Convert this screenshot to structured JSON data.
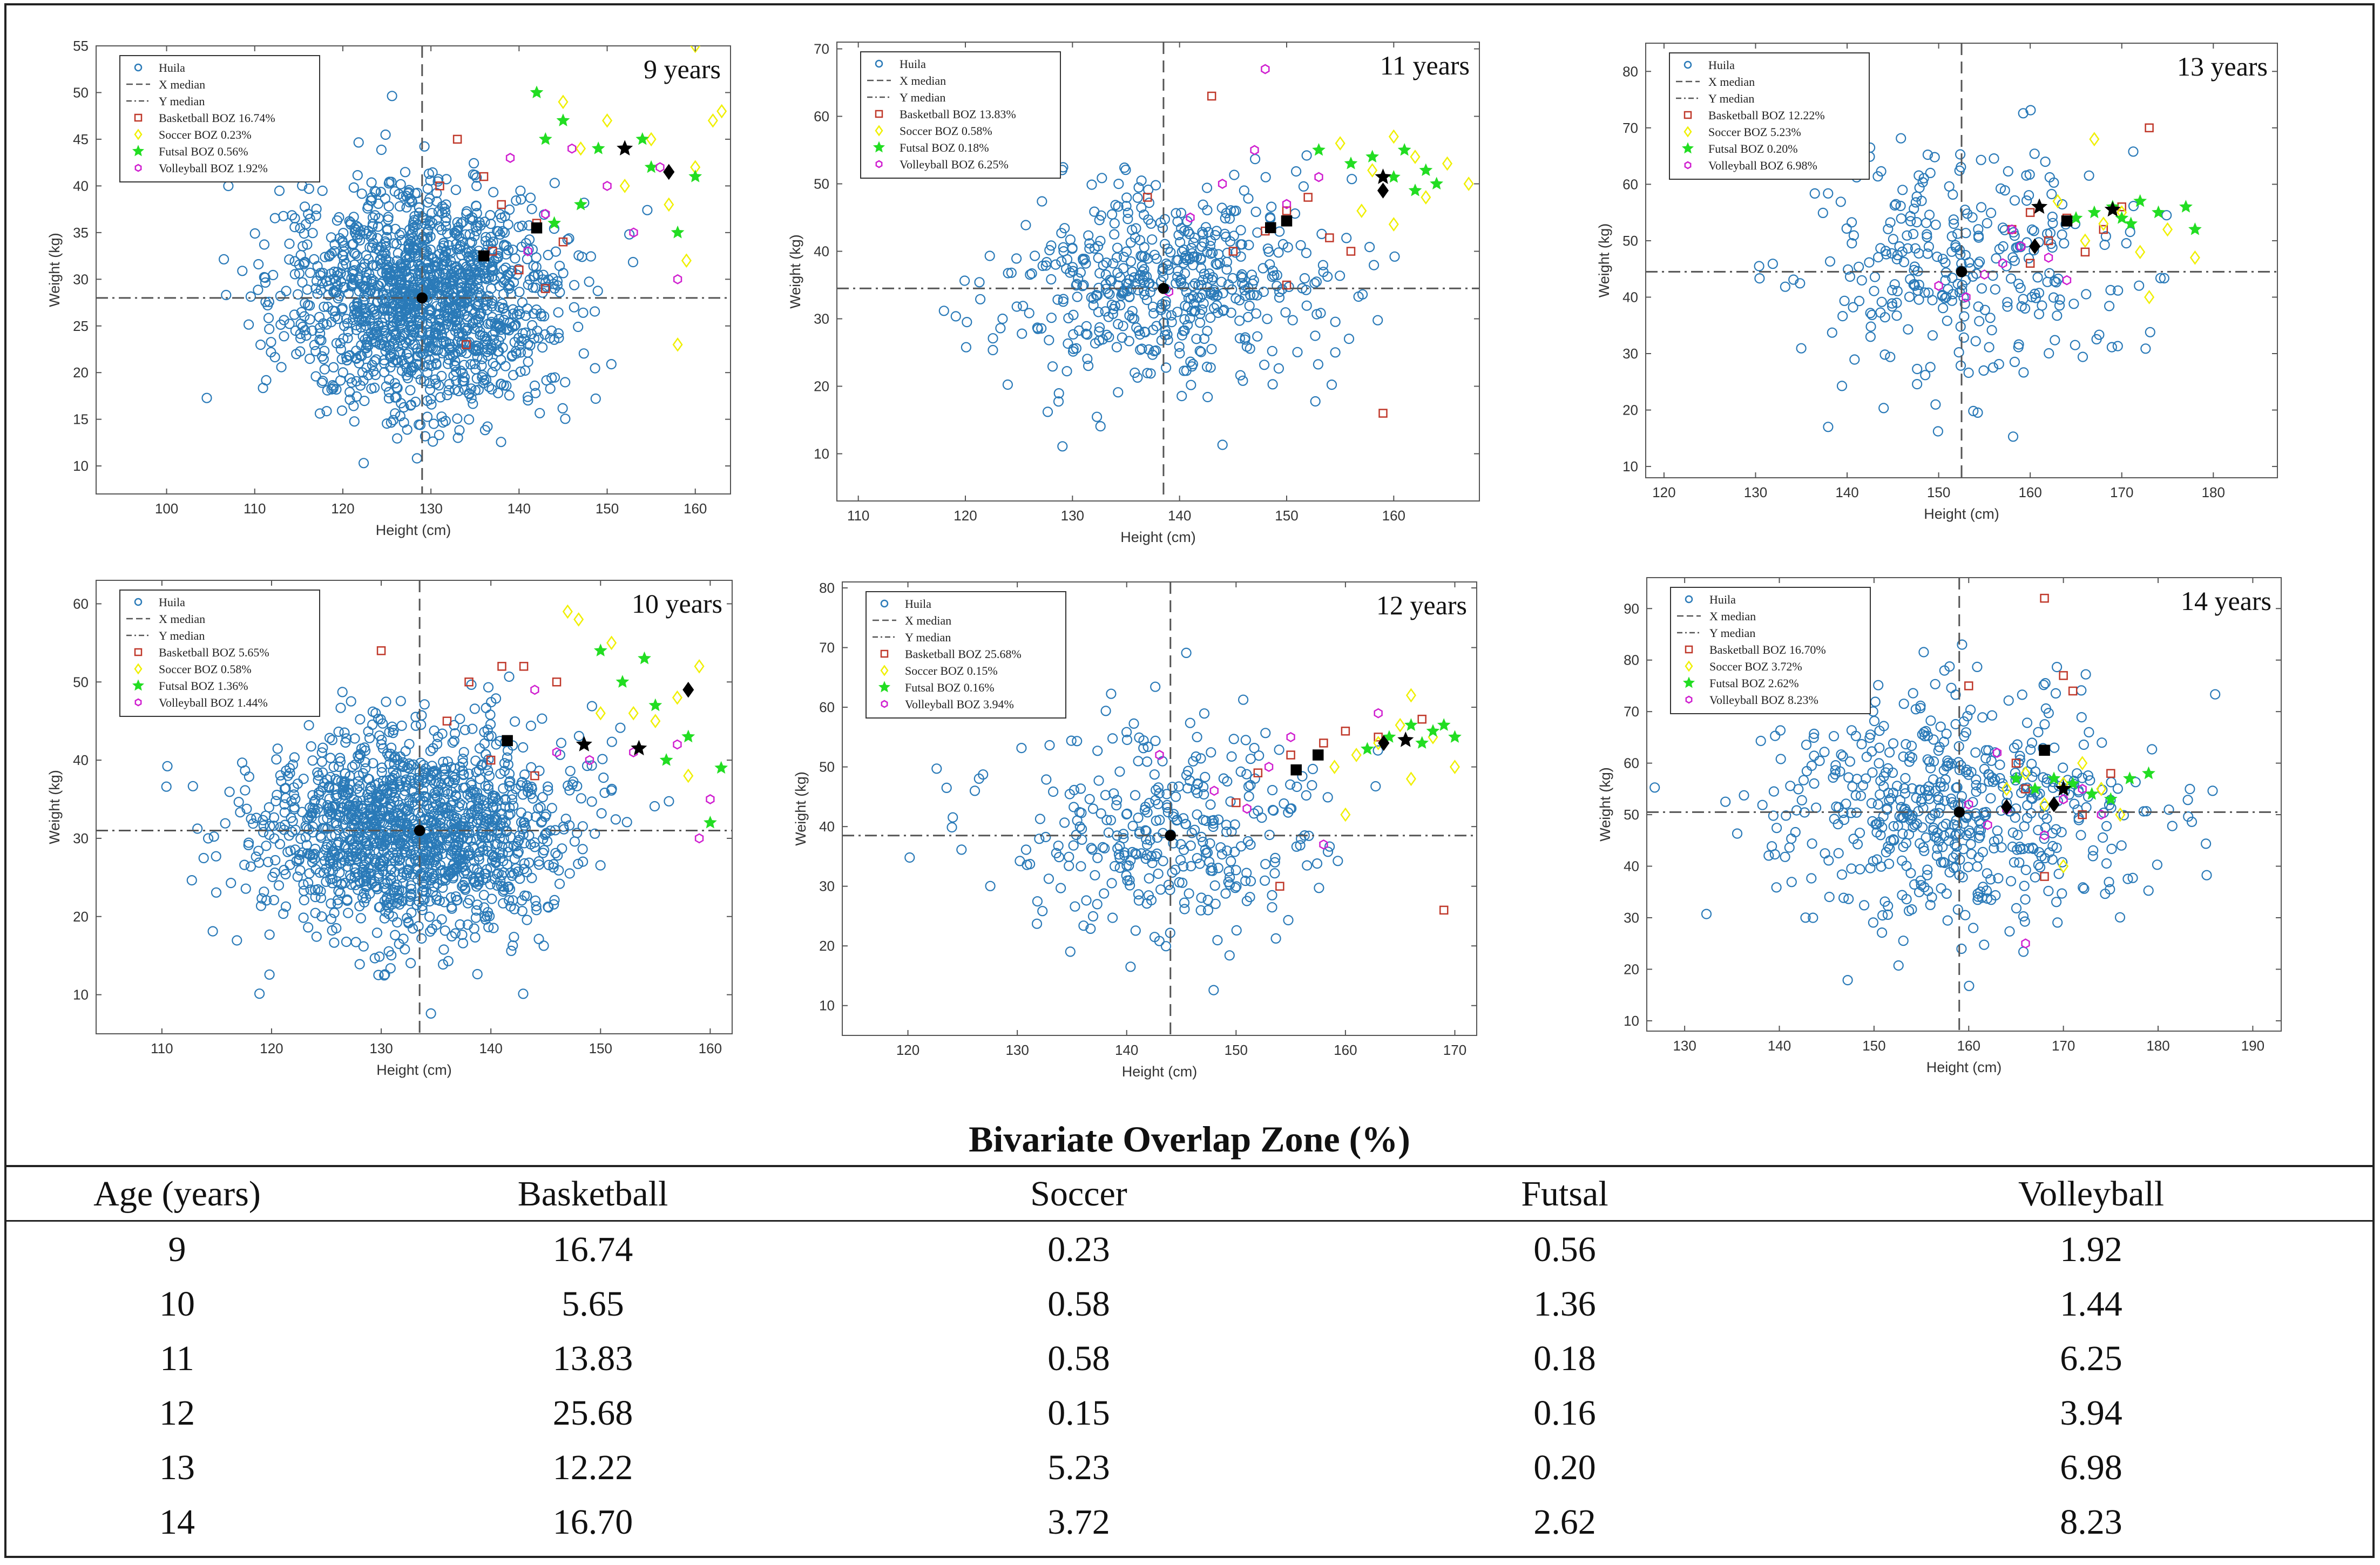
{
  "colors": {
    "huila": "#2a7ab8",
    "basketball": "#c0392b",
    "soccer": "#f0f000",
    "futsal": "#22dd22",
    "volleyball": "#d020d0",
    "median": "#555555"
  },
  "chart_data": [
    {
      "type": "scatter",
      "title": "9 years",
      "xlabel": "Height (cm)",
      "ylabel": "Weight (kg)",
      "xlim": [
        92,
        164
      ],
      "ylim": [
        7,
        55
      ],
      "xticks": [
        100,
        110,
        120,
        130,
        140,
        150,
        160
      ],
      "yticks": [
        10,
        15,
        20,
        25,
        30,
        35,
        40,
        45,
        50,
        55
      ],
      "x_median": 129,
      "y_median": 28,
      "huila_cluster": {
        "n": 1500,
        "mean_x": 129,
        "sd_x": 7.5,
        "mean_y": 28,
        "sd_y": 5.8
      },
      "legend": [
        "Huila",
        "X median",
        "Y median",
        "Basketball BOZ 16.74%",
        "Soccer BOZ 0.23%",
        "Futsal BOZ 0.56%",
        "Volleyball BOZ 1.92%"
      ],
      "basketball": [
        [
          131,
          40
        ],
        [
          133,
          45
        ],
        [
          136,
          41
        ],
        [
          138,
          38
        ],
        [
          134,
          23
        ],
        [
          142,
          36
        ],
        [
          140,
          31
        ],
        [
          145,
          34
        ],
        [
          143,
          29
        ],
        [
          137,
          33
        ]
      ],
      "soccer": [
        [
          145,
          49
        ],
        [
          150,
          47
        ],
        [
          147,
          44
        ],
        [
          152,
          40
        ],
        [
          155,
          45
        ],
        [
          160,
          42
        ],
        [
          158,
          23
        ],
        [
          162,
          47
        ],
        [
          159,
          32
        ],
        [
          160,
          55
        ],
        [
          163,
          48
        ],
        [
          157,
          38
        ]
      ],
      "futsal": [
        [
          142,
          50
        ],
        [
          143,
          45
        ],
        [
          145,
          47
        ],
        [
          147,
          38
        ],
        [
          149,
          44
        ],
        [
          154,
          45
        ],
        [
          155,
          42
        ],
        [
          158,
          35
        ],
        [
          160,
          41
        ],
        [
          144,
          36
        ]
      ],
      "volleyball": [
        [
          139,
          43
        ],
        [
          141,
          33
        ],
        [
          143,
          37
        ],
        [
          150,
          40
        ],
        [
          153,
          35
        ],
        [
          156,
          42
        ],
        [
          158,
          30
        ],
        [
          146,
          44
        ]
      ],
      "median_markers": {
        "circle": [
          129,
          28
        ],
        "square": [
          136,
          32.5
        ],
        "diamond": [
          157,
          41.5
        ],
        "star": [
          152,
          44
        ]
      },
      "extra_markers": {
        "square": [
          142,
          35.5
        ]
      }
    },
    {
      "type": "scatter",
      "title": "11 years",
      "xlabel": "Height (cm)",
      "ylabel": "Weight (kg)",
      "xlim": [
        108,
        168
      ],
      "ylim": [
        3,
        71
      ],
      "xticks": [
        110,
        120,
        130,
        140,
        150,
        160
      ],
      "yticks": [
        10,
        20,
        30,
        40,
        50,
        60,
        70
      ],
      "x_median": 138.5,
      "y_median": 34.5,
      "huila_cluster": {
        "n": 520,
        "mean_x": 138.5,
        "sd_x": 7.5,
        "mean_y": 35,
        "sd_y": 7.5
      },
      "legend": [
        "Huila",
        "X median",
        "Y median",
        "Basketball BOZ 13.83%",
        "Soccer BOZ 0.58%",
        "Futsal BOZ 0.18%",
        "Volleyball BOZ 6.25%"
      ],
      "basketball": [
        [
          137,
          48
        ],
        [
          143,
          63
        ],
        [
          145,
          40
        ],
        [
          148,
          43
        ],
        [
          150,
          46
        ],
        [
          152,
          48
        ],
        [
          150,
          35
        ],
        [
          156,
          40
        ],
        [
          159,
          16
        ],
        [
          154,
          42
        ]
      ],
      "soccer": [
        [
          155,
          56
        ],
        [
          158,
          52
        ],
        [
          160,
          57
        ],
        [
          162,
          54
        ],
        [
          163,
          48
        ],
        [
          165,
          53
        ],
        [
          167,
          50
        ],
        [
          160,
          44
        ],
        [
          157,
          46
        ]
      ],
      "futsal": [
        [
          153,
          55
        ],
        [
          156,
          53
        ],
        [
          158,
          54
        ],
        [
          160,
          51
        ],
        [
          161,
          55
        ],
        [
          162,
          49
        ],
        [
          163,
          52
        ],
        [
          164,
          50
        ]
      ],
      "volleyball": [
        [
          139,
          34
        ],
        [
          144,
          50
        ],
        [
          148,
          67
        ],
        [
          150,
          47
        ],
        [
          153,
          51
        ],
        [
          147,
          55
        ],
        [
          141,
          45
        ]
      ],
      "median_markers": {
        "circle": [
          138.5,
          34.5
        ],
        "square": [
          148.5,
          43.5
        ],
        "diamond": [
          159,
          49
        ],
        "star": [
          159,
          51
        ]
      },
      "extra_markers": {
        "square": [
          150,
          44.5
        ]
      }
    },
    {
      "type": "scatter",
      "title": "13 years",
      "xlabel": "Height (cm)",
      "ylabel": "Weight (kg)",
      "xlim": [
        118,
        187
      ],
      "ylim": [
        8,
        85
      ],
      "xticks": [
        120,
        130,
        140,
        150,
        160,
        170,
        180
      ],
      "yticks": [
        10,
        20,
        30,
        40,
        50,
        60,
        70,
        80
      ],
      "x_median": 152.5,
      "y_median": 44.5,
      "huila_cluster": {
        "n": 300,
        "mean_x": 152.5,
        "sd_x": 9,
        "mean_y": 45,
        "sd_y": 11
      },
      "legend": [
        "Huila",
        "X median",
        "Y median",
        "Basketball BOZ 12.22%",
        "Soccer BOZ 5.23%",
        "Futsal BOZ 0.20%",
        "Volleyball BOZ 6.98%"
      ],
      "basketball": [
        [
          158,
          52
        ],
        [
          160,
          55
        ],
        [
          162,
          50
        ],
        [
          164,
          54
        ],
        [
          166,
          48
        ],
        [
          168,
          52
        ],
        [
          170,
          56
        ],
        [
          173,
          70
        ],
        [
          160,
          46
        ]
      ],
      "soccer": [
        [
          163,
          57
        ],
        [
          166,
          50
        ],
        [
          168,
          53
        ],
        [
          170,
          55
        ],
        [
          172,
          48
        ],
        [
          175,
          52
        ],
        [
          178,
          47
        ],
        [
          173,
          40
        ],
        [
          167,
          68
        ]
      ],
      "futsal": [
        [
          165,
          54
        ],
        [
          167,
          55
        ],
        [
          169,
          56
        ],
        [
          170,
          54
        ],
        [
          172,
          57
        ],
        [
          174,
          55
        ],
        [
          177,
          56
        ],
        [
          178,
          52
        ],
        [
          171,
          53
        ]
      ],
      "volleyball": [
        [
          150,
          42
        ],
        [
          153,
          40
        ],
        [
          155,
          44
        ],
        [
          157,
          46
        ],
        [
          159,
          49
        ],
        [
          162,
          47
        ],
        [
          164,
          43
        ],
        [
          158,
          52
        ]
      ],
      "median_markers": {
        "circle": [
          152.5,
          44.5
        ],
        "square": [
          164,
          53.5
        ],
        "diamond": [
          160.5,
          49
        ],
        "star": [
          169,
          55.5
        ]
      },
      "extra_markers": {
        "star": [
          161,
          56
        ]
      }
    },
    {
      "type": "scatter",
      "title": "10 years",
      "xlabel": "Height (cm)",
      "ylabel": "Weight (kg)",
      "xlim": [
        104,
        162
      ],
      "ylim": [
        5,
        63
      ],
      "xticks": [
        110,
        120,
        130,
        140,
        150,
        160
      ],
      "yticks": [
        10,
        20,
        30,
        40,
        50,
        60
      ],
      "x_median": 133.5,
      "y_median": 31,
      "huila_cluster": {
        "n": 1500,
        "mean_x": 133,
        "sd_x": 7,
        "mean_y": 31,
        "sd_y": 6.5
      },
      "legend": [
        "Huila",
        "X median",
        "Y median",
        "Basketball BOZ 5.65%",
        "Soccer BOZ 0.58%",
        "Futsal BOZ 1.36%",
        "Volleyball BOZ 1.44%"
      ],
      "basketball": [
        [
          130,
          54
        ],
        [
          136,
          45
        ],
        [
          138,
          50
        ],
        [
          141,
          52
        ],
        [
          143,
          52
        ],
        [
          146,
          50
        ],
        [
          140,
          40
        ],
        [
          144,
          38
        ]
      ],
      "soccer": [
        [
          147,
          59
        ],
        [
          148,
          58
        ],
        [
          150,
          46
        ],
        [
          151,
          55
        ],
        [
          153,
          46
        ],
        [
          155,
          45
        ],
        [
          157,
          48
        ],
        [
          159,
          52
        ],
        [
          158,
          38
        ]
      ],
      "futsal": [
        [
          150,
          54
        ],
        [
          152,
          50
        ],
        [
          154,
          53
        ],
        [
          155,
          47
        ],
        [
          156,
          40
        ],
        [
          158,
          43
        ],
        [
          160,
          32
        ],
        [
          161,
          39
        ]
      ],
      "volleyball": [
        [
          144,
          49
        ],
        [
          146,
          41
        ],
        [
          149,
          40
        ],
        [
          153,
          41
        ],
        [
          157,
          42
        ],
        [
          159,
          30
        ],
        [
          160,
          35
        ]
      ],
      "median_markers": {
        "circle": [
          133.5,
          31
        ],
        "square": [
          141.5,
          42.5
        ],
        "diamond": [
          158,
          49
        ],
        "star": [
          153.5,
          41.5
        ]
      },
      "extra_markers": {
        "star": [
          148.5,
          42
        ]
      }
    },
    {
      "type": "scatter",
      "title": "12 years",
      "xlabel": "Height (cm)",
      "ylabel": "Weight (kg)",
      "xlim": [
        114,
        172
      ],
      "ylim": [
        5,
        81
      ],
      "xticks": [
        120,
        130,
        140,
        150,
        160,
        170
      ],
      "yticks": [
        10,
        20,
        30,
        40,
        50,
        60,
        70,
        80
      ],
      "x_median": 144,
      "y_median": 38.5,
      "huila_cluster": {
        "n": 330,
        "mean_x": 144,
        "sd_x": 8,
        "mean_y": 38.5,
        "sd_y": 9
      },
      "legend": [
        "Huila",
        "X median",
        "Y median",
        "Basketball BOZ 25.68%",
        "Soccer BOZ 0.15%",
        "Futsal BOZ 0.16%",
        "Volleyball BOZ 3.94%"
      ],
      "basketball": [
        [
          132,
          61
        ],
        [
          150,
          44
        ],
        [
          152,
          49
        ],
        [
          155,
          52
        ],
        [
          158,
          54
        ],
        [
          160,
          56
        ],
        [
          163,
          55
        ],
        [
          167,
          58
        ],
        [
          169,
          26
        ],
        [
          154,
          30
        ]
      ],
      "soccer": [
        [
          159,
          50
        ],
        [
          161,
          52
        ],
        [
          163,
          54
        ],
        [
          165,
          57
        ],
        [
          166,
          62
        ],
        [
          168,
          55
        ],
        [
          170,
          50
        ],
        [
          166,
          48
        ],
        [
          160,
          42
        ]
      ],
      "futsal": [
        [
          162,
          53
        ],
        [
          164,
          55
        ],
        [
          166,
          57
        ],
        [
          167,
          54
        ],
        [
          168,
          56
        ],
        [
          169,
          57
        ],
        [
          170,
          55
        ]
      ],
      "volleyball": [
        [
          143,
          52
        ],
        [
          148,
          46
        ],
        [
          151,
          43
        ],
        [
          153,
          50
        ],
        [
          155,
          55
        ],
        [
          158,
          37
        ],
        [
          163,
          59
        ]
      ],
      "median_markers": {
        "circle": [
          144,
          38.5
        ],
        "square": [
          157.5,
          52
        ],
        "diamond": [
          163.5,
          54
        ],
        "star": [
          165.5,
          54.5
        ]
      },
      "extra_markers": {
        "square": [
          155.5,
          49.5
        ]
      }
    },
    {
      "type": "scatter",
      "title": "14 years",
      "xlabel": "Height (cm)",
      "ylabel": "Weight (kg)",
      "xlim": [
        126,
        193
      ],
      "ylim": [
        8,
        96
      ],
      "xticks": [
        130,
        140,
        150,
        160,
        170,
        180,
        190
      ],
      "yticks": [
        10,
        20,
        30,
        40,
        50,
        60,
        70,
        80,
        90
      ],
      "x_median": 159,
      "y_median": 50.5,
      "huila_cluster": {
        "n": 560,
        "mean_x": 158,
        "sd_x": 9.5,
        "mean_y": 51,
        "sd_y": 11
      },
      "legend": [
        "Huila",
        "X median",
        "Y median",
        "Basketball BOZ 16.70%",
        "Soccer BOZ 3.72%",
        "Futsal BOZ 2.62%",
        "Volleyball BOZ 8.23%"
      ],
      "basketball": [
        [
          160,
          75
        ],
        [
          165,
          60
        ],
        [
          168,
          92
        ],
        [
          170,
          77
        ],
        [
          171,
          74
        ],
        [
          166,
          55
        ],
        [
          172,
          50
        ],
        [
          175,
          58
        ],
        [
          168,
          38
        ]
      ],
      "soccer": [
        [
          164,
          55
        ],
        [
          166,
          58
        ],
        [
          168,
          52
        ],
        [
          170,
          56
        ],
        [
          172,
          60
        ],
        [
          174,
          55
        ],
        [
          176,
          50
        ],
        [
          170,
          40
        ]
      ],
      "futsal": [
        [
          165,
          57
        ],
        [
          167,
          55
        ],
        [
          169,
          57
        ],
        [
          171,
          56
        ],
        [
          173,
          54
        ],
        [
          175,
          53
        ],
        [
          177,
          57
        ],
        [
          179,
          58
        ]
      ],
      "volleyball": [
        [
          160,
          52
        ],
        [
          162,
          48
        ],
        [
          164,
          51
        ],
        [
          166,
          25
        ],
        [
          168,
          46
        ],
        [
          170,
          53
        ],
        [
          172,
          55
        ],
        [
          174,
          50
        ],
        [
          163,
          62
        ]
      ],
      "median_markers": {
        "circle": [
          159,
          50.5
        ],
        "square": [
          168,
          62.5
        ],
        "diamond": [
          169,
          52
        ],
        "star": [
          170,
          55
        ]
      },
      "extra_markers": {
        "diamond": [
          164,
          51.5
        ]
      }
    }
  ],
  "table": {
    "title": "Bivariate Overlap Zone (%)",
    "headers": [
      "Age (years)",
      "Basketball",
      "Soccer",
      "Futsal",
      "Volleyball"
    ],
    "rows": [
      [
        "9",
        "16.74",
        "0.23",
        "0.56",
        "1.92"
      ],
      [
        "10",
        "5.65",
        "0.58",
        "1.36",
        "1.44"
      ],
      [
        "11",
        "13.83",
        "0.58",
        "0.18",
        "6.25"
      ],
      [
        "12",
        "25.68",
        "0.15",
        "0.16",
        "3.94"
      ],
      [
        "13",
        "12.22",
        "5.23",
        "0.20",
        "6.98"
      ],
      [
        "14",
        "16.70",
        "3.72",
        "2.62",
        "8.23"
      ]
    ]
  }
}
